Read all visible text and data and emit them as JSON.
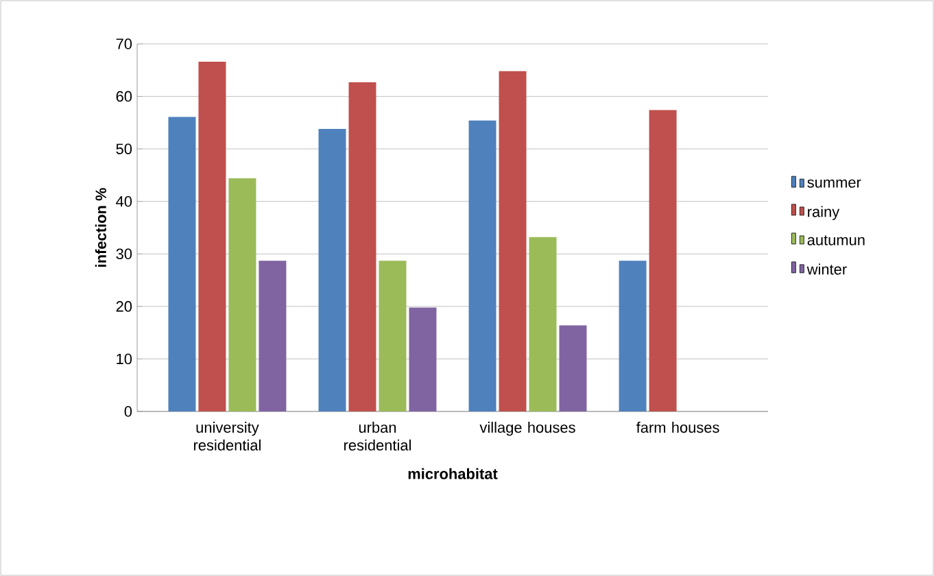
{
  "chart_data": {
    "type": "bar",
    "xlabel": "microhabitat",
    "ylabel": "infection %",
    "categories": [
      "university residential",
      "urban residential",
      "village houses",
      "farm houses"
    ],
    "series": [
      {
        "name": "summer",
        "color": "#4f81bd",
        "values": [
          56.1,
          53.8,
          55.4,
          28.7
        ]
      },
      {
        "name": "rainy",
        "color": "#c0504d",
        "values": [
          66.6,
          62.7,
          64.8,
          57.4
        ]
      },
      {
        "name": "autumun",
        "color": "#9bbb59",
        "values": [
          44.4,
          28.7,
          33.2,
          null
        ]
      },
      {
        "name": "winter",
        "color": "#8064a2",
        "values": [
          28.7,
          19.8,
          16.4,
          null
        ]
      }
    ],
    "ylim": [
      0,
      70
    ],
    "yticks": [
      0,
      10,
      20,
      30,
      40,
      50,
      60,
      70
    ],
    "grid": "y",
    "legend": "right"
  }
}
